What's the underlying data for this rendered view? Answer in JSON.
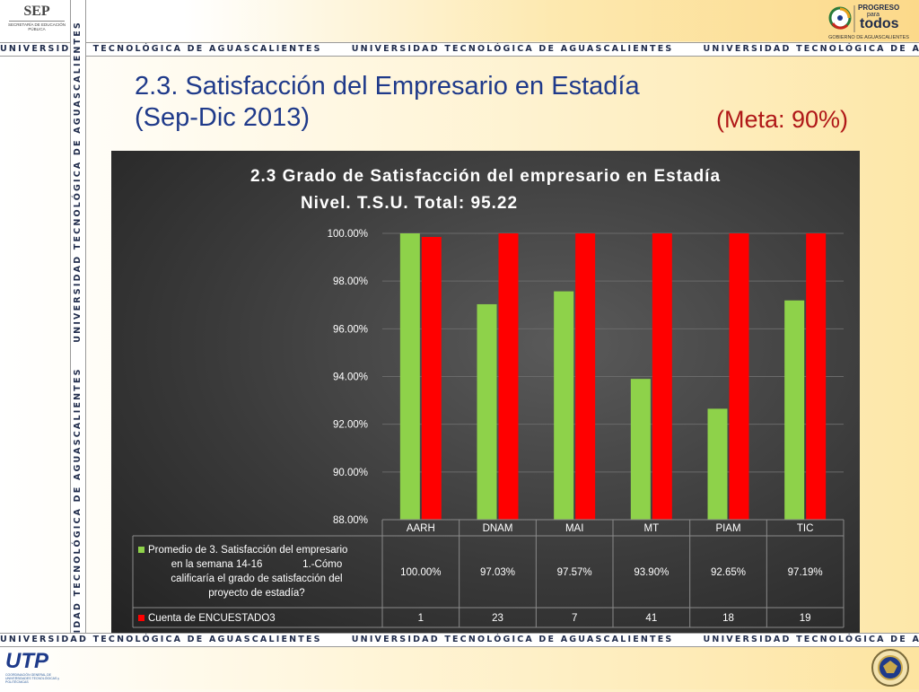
{
  "header": {
    "sep_logo": "SEP",
    "sep_subtitle": "SECRETARÍA DE EDUCACIÓN PÚBLICA",
    "right_logo_line1": "PROGRESO",
    "right_logo_line2": "para",
    "right_logo_line3": "todos",
    "right_logo_caption": "GOBIERNO DE AGUASCALIENTES"
  },
  "banner_text": "UNIVERSIDAD TECNOLÓGICA DE AGUASCALIENTES",
  "slide": {
    "title_line1": "2.3. Satisfacción del Empresario en Estadía",
    "title_line2": "(Sep-Dic 2013)",
    "goal": "(Meta: 90%)"
  },
  "footer": {
    "utp_logo": "UTP",
    "utp_caption": "COORDINACIÓN GENERAL DE UNIVERSIDADES TECNOLÓGICAS y POLITÉCNICAS"
  },
  "colors": {
    "green": "#8ed24a",
    "red": "#ff0000",
    "title_blue": "#1f3a8a",
    "goal_red": "#b01818"
  },
  "chart_data": {
    "type": "bar",
    "title": "2.3 Grado de Satisfacción del empresario en Estadía",
    "subtitle": "Nivel. T.S.U. Total: 95.22",
    "categories": [
      "AARH",
      "DNAM",
      "MAI",
      "MT",
      "PIAM",
      "TIC"
    ],
    "ylim": [
      88,
      100
    ],
    "yticks": [
      "88.00%",
      "90.00%",
      "92.00%",
      "94.00%",
      "96.00%",
      "98.00%",
      "100.00%"
    ],
    "grid": true,
    "series": [
      {
        "name": "Promedio de 3. Satisfacción del empresario en la semana 14-16 1.-Cómo calificaría el grado de satisfacción del proyecto de estadía?",
        "name_lines": [
          "Promedio de 3. Satisfacción del empresario",
          "en la semana 14-16              1.-Cómo",
          "calificaría el grado de satisfacción del",
          "proyecto de estadía?"
        ],
        "color": "#8ed24a",
        "values": [
          100.0,
          97.03,
          97.57,
          93.9,
          92.65,
          97.19
        ],
        "labels": [
          "100.00%",
          "97.03%",
          "97.57%",
          "93.90%",
          "92.65%",
          "97.19%"
        ]
      },
      {
        "name": "Cuenta de ENCUESTADO3",
        "color": "#ff0000",
        "values": [
          1,
          23,
          7,
          41,
          18,
          19
        ],
        "labels": [
          "1",
          "23",
          "7",
          "41",
          "18",
          "19"
        ]
      }
    ]
  }
}
